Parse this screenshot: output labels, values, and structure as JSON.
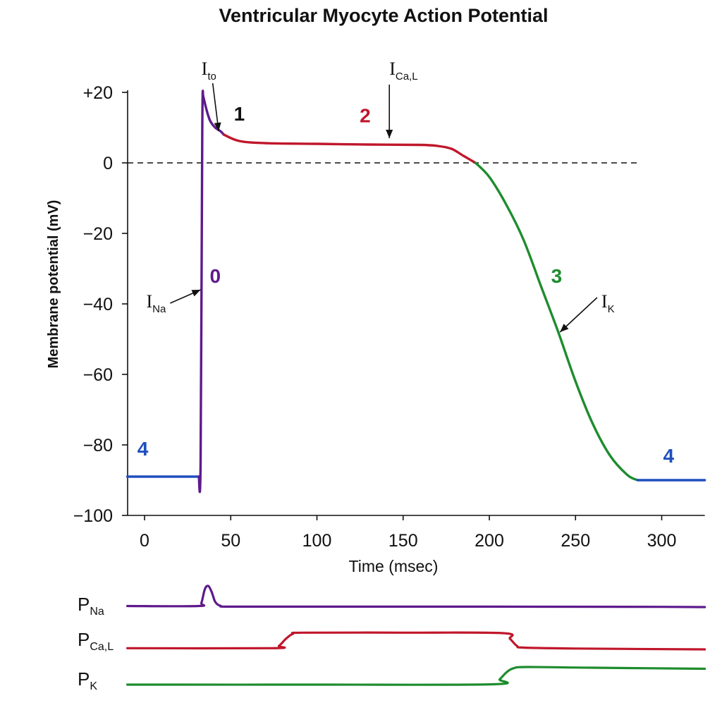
{
  "chart_data": {
    "type": "line",
    "title": "Ventricular Myocyte Action Potential",
    "xlabel": "Time (msec)",
    "ylabel": "Membrane potential (mV)",
    "xlim": [
      -10,
      325
    ],
    "ylim": [
      -100,
      20
    ],
    "x_ticks": [
      "0",
      "50",
      "100",
      "150",
      "200",
      "250",
      "300"
    ],
    "x_tick_values": [
      0,
      50,
      100,
      150,
      200,
      250,
      300
    ],
    "y_ticks": [
      "+20",
      "0",
      "−20",
      "−40",
      "−60",
      "−80",
      "−100"
    ],
    "y_tick_values": [
      20,
      0,
      -20,
      -40,
      -60,
      -80,
      -100
    ],
    "zero_reference_line": true,
    "grid": false,
    "series": [
      {
        "phase": "4",
        "color": "#1f4fbf",
        "x": [
          -10,
          0,
          20,
          31.5
        ],
        "y": [
          -89,
          -89,
          -89,
          -89
        ]
      },
      {
        "phase": "0",
        "color": "#5e1a8c",
        "x": [
          31.5,
          32.5,
          33.5,
          34
        ],
        "y": [
          -89,
          -85,
          10,
          19
        ]
      },
      {
        "phase": "1",
        "color": "#5e1a8c",
        "x": [
          34,
          36,
          38,
          41,
          44,
          46
        ],
        "y": [
          19,
          15,
          12,
          10,
          9,
          8
        ]
      },
      {
        "phase": "2",
        "color": "#c0172b",
        "x": [
          46,
          55,
          70,
          100,
          130,
          160,
          170,
          178,
          185,
          192
        ],
        "y": [
          8,
          6.2,
          5.6,
          5.4,
          5.2,
          5.1,
          4.8,
          4,
          2,
          0
        ]
      },
      {
        "phase": "3",
        "color": "#1e8c2e",
        "x": [
          192,
          200,
          210,
          220,
          230,
          240,
          250,
          260,
          270,
          280,
          286
        ],
        "y": [
          0,
          -4,
          -12,
          -22,
          -35,
          -48,
          -62,
          -74,
          -83,
          -88.5,
          -90
        ]
      },
      {
        "phase": "4",
        "color": "#1f4fbf",
        "x": [
          286,
          300,
          325
        ],
        "y": [
          -90,
          -90,
          -90
        ]
      }
    ],
    "phase_labels": [
      {
        "text": "4",
        "x": -1,
        "y": -83,
        "color": "#1f4fbf"
      },
      {
        "text": "0",
        "x": 41,
        "y": -34,
        "color": "#5e1a8c"
      },
      {
        "text": "1",
        "x": 55,
        "y": 12,
        "color": "#111111"
      },
      {
        "text": "2",
        "x": 128,
        "y": 11.5,
        "color": "#c0172b"
      },
      {
        "text": "3",
        "x": 239,
        "y": -34,
        "color": "#1e8c2e"
      },
      {
        "text": "4",
        "x": 304,
        "y": -85,
        "color": "#1f4fbf"
      }
    ],
    "current_annotations": [
      {
        "main": "I",
        "sub": "to",
        "label_x": 33,
        "label_y": 25,
        "tip_x": 43,
        "tip_y": 9
      },
      {
        "main": "I",
        "sub": "Ca,L",
        "label_x": 142,
        "label_y": 25,
        "tip_x": 142,
        "tip_y": 7
      },
      {
        "main": "I",
        "sub": "Na",
        "label_x": 1,
        "label_y": -41,
        "tip_x": 32.5,
        "tip_y": -36
      },
      {
        "main": "I",
        "sub": "K",
        "label_x": 265,
        "label_y": -41,
        "tip_x": 241,
        "tip_y": -48
      }
    ],
    "permeability_traces": [
      {
        "main": "P",
        "sub": "Na",
        "color": "#5e1a8c",
        "x": [
          -10,
          31,
          33,
          35,
          37,
          39,
          41,
          44,
          50,
          100,
          200,
          300,
          325
        ],
        "level": [
          0.05,
          0.05,
          0.2,
          0.85,
          1.0,
          0.7,
          0.25,
          0.06,
          0.02,
          0.02,
          0.02,
          0.01,
          0.0
        ]
      },
      {
        "main": "P",
        "sub": "Ca,L",
        "color": "#c0172b",
        "x": [
          -10,
          74,
          78,
          82,
          86,
          92,
          150,
          208,
          212,
          216,
          220,
          250,
          325
        ],
        "level": [
          0.07,
          0.07,
          0.2,
          0.6,
          0.88,
          0.95,
          0.95,
          0.92,
          0.6,
          0.2,
          0.1,
          0.05,
          0.0
        ]
      },
      {
        "main": "P",
        "sub": "K",
        "color": "#1e8c2e",
        "x": [
          -10,
          100,
          202,
          206,
          210,
          214,
          222,
          260,
          325
        ],
        "level": [
          0.0,
          0.0,
          0.02,
          0.3,
          0.7,
          0.93,
          1.0,
          0.96,
          0.9
        ]
      }
    ]
  }
}
